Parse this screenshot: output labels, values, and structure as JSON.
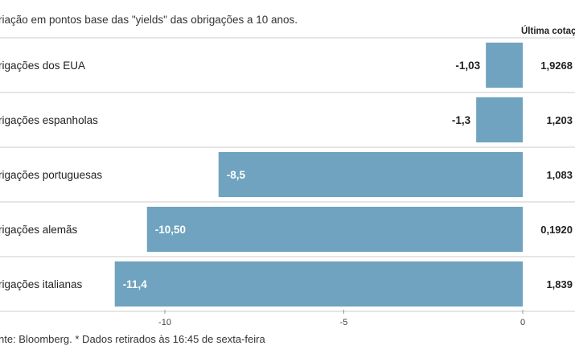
{
  "subtitle": "riação em pontos base das \"yields\" das obrigações a 10 anos.",
  "last_quote_header": "Última cotação",
  "source": "nte: Bloomberg.  * Dados retirados às 16:45 de sexta-feira",
  "colors": {
    "bar": "#6fa3bf",
    "divider": "#cccccc",
    "axis": "#999999"
  },
  "chart_data": {
    "type": "bar",
    "orientation": "horizontal",
    "categories": [
      "rigações dos EUA",
      "rigações espanholas",
      "rigações portuguesas",
      "rigações alemãs",
      "rigações italianas"
    ],
    "values": [
      -1.03,
      -1.3,
      -8.5,
      -10.5,
      -11.4
    ],
    "value_labels": [
      "-1,03",
      "-1,3",
      "-8,5",
      "-10,50",
      "-11,4"
    ],
    "last_quote": [
      "1,9268",
      "1,203",
      "1,083",
      "0,1920",
      "1,839"
    ],
    "xlim": [
      -11.4,
      0
    ],
    "xticks": [
      -10,
      -5,
      0
    ],
    "xtick_labels": [
      "-10",
      "-5",
      "0"
    ],
    "grid": false
  }
}
